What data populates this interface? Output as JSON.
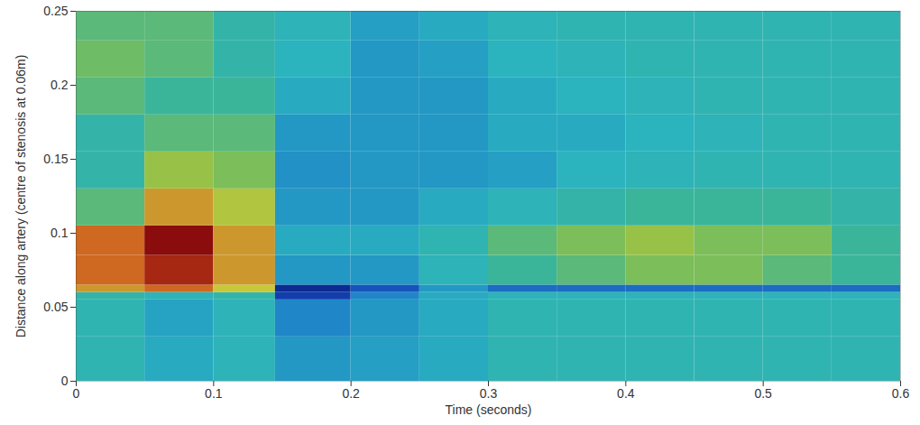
{
  "chart_data": {
    "type": "heatmap",
    "x_label": "Time (seconds)",
    "y_label": "Distance along artery (centre of stenosis at 0.06m)",
    "xlim": [
      0,
      0.6
    ],
    "ylim": [
      0,
      0.25
    ],
    "xticks": [
      0,
      0.1,
      0.2,
      0.3,
      0.4,
      0.5,
      0.6
    ],
    "yticks": [
      0,
      0.05,
      0.1,
      0.15,
      0.2,
      0.25
    ],
    "zlim": [
      0,
      1
    ],
    "x_bins": [
      0,
      0.05,
      0.1,
      0.145,
      0.2,
      0.25,
      0.3,
      0.35,
      0.4,
      0.45,
      0.5,
      0.55,
      0.6
    ],
    "y_bins": [
      0,
      0.03,
      0.055,
      0.06,
      0.065,
      0.085,
      0.105,
      0.13,
      0.155,
      0.18,
      0.205,
      0.23,
      0.25
    ],
    "cells": [
      [
        0.42,
        0.35,
        0.4,
        0.3,
        0.32,
        0.35,
        0.42,
        0.42,
        0.42,
        0.42,
        0.42,
        0.42
      ],
      [
        0.42,
        0.33,
        0.4,
        0.25,
        0.3,
        0.35,
        0.42,
        0.42,
        0.42,
        0.42,
        0.42,
        0.42
      ],
      [
        0.45,
        0.4,
        0.45,
        0.1,
        0.25,
        0.35,
        0.4,
        0.4,
        0.4,
        0.4,
        0.4,
        0.4
      ],
      [
        0.8,
        0.85,
        0.75,
        0.05,
        0.15,
        0.3,
        0.2,
        0.2,
        0.2,
        0.2,
        0.2,
        0.2
      ],
      [
        0.85,
        0.95,
        0.8,
        0.3,
        0.3,
        0.4,
        0.5,
        0.55,
        0.6,
        0.6,
        0.55,
        0.5
      ],
      [
        0.85,
        1.0,
        0.8,
        0.35,
        0.35,
        0.42,
        0.55,
        0.6,
        0.65,
        0.6,
        0.6,
        0.5
      ],
      [
        0.55,
        0.8,
        0.7,
        0.3,
        0.3,
        0.35,
        0.4,
        0.45,
        0.5,
        0.5,
        0.5,
        0.45
      ],
      [
        0.45,
        0.65,
        0.6,
        0.28,
        0.3,
        0.3,
        0.32,
        0.38,
        0.4,
        0.42,
        0.42,
        0.42
      ],
      [
        0.45,
        0.55,
        0.55,
        0.3,
        0.3,
        0.3,
        0.35,
        0.35,
        0.38,
        0.4,
        0.42,
        0.42
      ],
      [
        0.55,
        0.5,
        0.5,
        0.35,
        0.3,
        0.3,
        0.35,
        0.38,
        0.4,
        0.42,
        0.42,
        0.42
      ],
      [
        0.58,
        0.55,
        0.45,
        0.38,
        0.3,
        0.32,
        0.38,
        0.4,
        0.42,
        0.42,
        0.42,
        0.42
      ],
      [
        0.55,
        0.55,
        0.45,
        0.4,
        0.32,
        0.35,
        0.4,
        0.42,
        0.42,
        0.42,
        0.42,
        0.42
      ]
    ]
  }
}
